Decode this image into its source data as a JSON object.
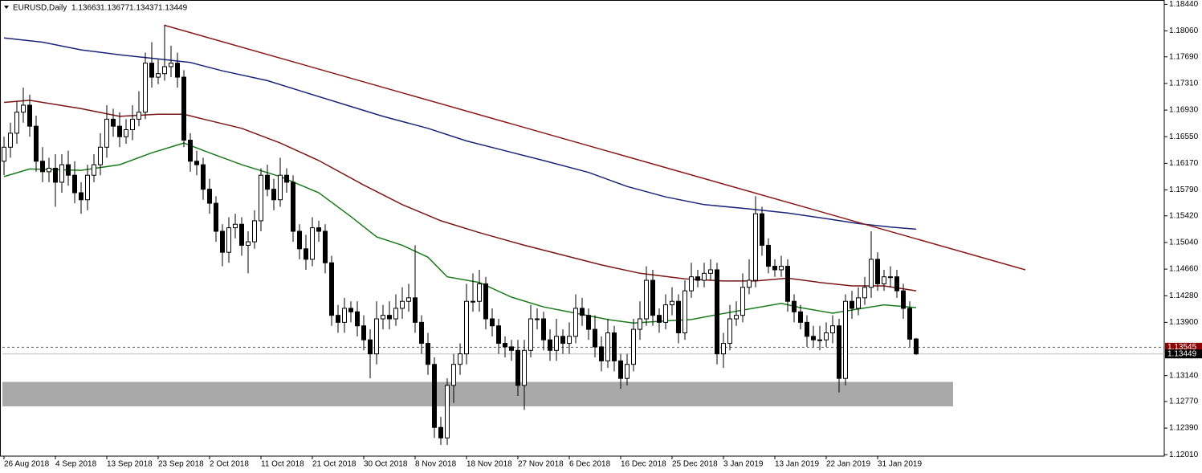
{
  "chart_data": {
    "type": "candlestick",
    "symbol": "EURUSD,Daily",
    "xlim": [
      -0.25,
      180.625
    ],
    "ylim": [
      1.1199,
      1.1849
    ],
    "xticks": [
      {
        "value": 0,
        "label": "26 Aug 2018"
      },
      {
        "value": 8,
        "label": "4 Sep 2018"
      },
      {
        "value": 16,
        "label": "13 Sep 2018"
      },
      {
        "value": 24,
        "label": "23 Sep 2018"
      },
      {
        "value": 32,
        "label": "2 Oct 2018"
      },
      {
        "value": 40,
        "label": "11 Oct 2018"
      },
      {
        "value": 48,
        "label": "21 Oct 2018"
      },
      {
        "value": 56,
        "label": "30 Oct 2018"
      },
      {
        "value": 64,
        "label": "8 Nov 2018"
      },
      {
        "value": 72,
        "label": "18 Nov 2018"
      },
      {
        "value": 80,
        "label": "27 Nov 2018"
      },
      {
        "value": 88,
        "label": "6 Dec 2018"
      },
      {
        "value": 96,
        "label": "16 Dec 2018"
      },
      {
        "value": 104,
        "label": "25 Dec 2018"
      },
      {
        "value": 112,
        "label": "3 Jan 2019"
      },
      {
        "value": 120,
        "label": "13 Jan 2019"
      },
      {
        "value": 128,
        "label": "22 Jan 2019"
      },
      {
        "value": 136,
        "label": "31 Jan 2019"
      }
    ],
    "yticks": [
      {
        "value": 1.1844,
        "label": "1.18440"
      },
      {
        "value": 1.1806,
        "label": "1.18060"
      },
      {
        "value": 1.1769,
        "label": "1.17690"
      },
      {
        "value": 1.1731,
        "label": "1.17310"
      },
      {
        "value": 1.1693,
        "label": "1.16930"
      },
      {
        "value": 1.1655,
        "label": "1.16550"
      },
      {
        "value": 1.1617,
        "label": "1.16170"
      },
      {
        "value": 1.1579,
        "label": "1.15790"
      },
      {
        "value": 1.1542,
        "label": "1.15420"
      },
      {
        "value": 1.1504,
        "label": "1.15040"
      },
      {
        "value": 1.1466,
        "label": "1.14660"
      },
      {
        "value": 1.1428,
        "label": "1.14280"
      },
      {
        "value": 1.139,
        "label": "1.13900"
      },
      {
        "value": 1.1314,
        "label": "1.13140"
      },
      {
        "value": 1.1277,
        "label": "1.12770"
      },
      {
        "value": 1.1239,
        "label": "1.12390"
      },
      {
        "value": 1.1201,
        "label": "1.12010"
      }
    ],
    "up_color": "#ffffff",
    "down_color": "#000000",
    "open": [
      1.162,
      1.164,
      1.166,
      1.169,
      1.17,
      1.167,
      1.162,
      1.1605,
      1.161,
      1.159,
      1.1615,
      1.16,
      1.1575,
      1.1565,
      1.16,
      1.1615,
      1.164,
      1.168,
      1.167,
      1.1655,
      1.1665,
      1.168,
      1.169,
      1.176,
      1.174,
      1.1745,
      1.1755,
      1.176,
      1.174,
      1.165,
      1.162,
      1.1615,
      1.158,
      1.156,
      1.152,
      1.149,
      1.1525,
      1.153,
      1.15,
      1.1505,
      1.1535,
      1.16,
      1.158,
      1.1565,
      1.16,
      1.159,
      1.152,
      1.1495,
      1.148,
      1.1525,
      1.152,
      1.1475,
      1.14,
      1.139,
      1.141,
      1.1405,
      1.1385,
      1.1365,
      1.1345,
      1.1395,
      1.14,
      1.1395,
      1.141,
      1.142,
      1.1425,
      1.139,
      1.136,
      1.133,
      1.124,
      1.1225,
      1.13,
      1.133,
      1.1345,
      1.142,
      1.142,
      1.1445,
      1.1395,
      1.1385,
      1.136,
      1.1355,
      1.135,
      1.13,
      1.135,
      1.1395,
      1.1395,
      1.1365,
      1.135,
      1.137,
      1.136,
      1.137,
      1.141,
      1.14,
      1.138,
      1.1355,
      1.1335,
      1.1375,
      1.1335,
      1.131,
      1.133,
      1.138,
      1.1395,
      1.145,
      1.14,
      1.139,
      1.1415,
      1.142,
      1.1375,
      1.1435,
      1.1455,
      1.145,
      1.146,
      1.1465,
      1.1345,
      1.136,
      1.1395,
      1.14,
      1.144,
      1.145,
      1.1545,
      1.15,
      1.147,
      1.1465,
      1.147,
      1.142,
      1.1405,
      1.139,
      1.137,
      1.1365,
      1.1365,
      1.1375,
      1.1385,
      1.131,
      1.142,
      1.141,
      1.1425,
      1.144,
      1.148,
      1.1445,
      1.1455,
      1.1455,
      1.1435,
      1.141,
      1.13663
    ],
    "high": [
      1.1655,
      1.1675,
      1.1705,
      1.1725,
      1.1715,
      1.1685,
      1.164,
      1.1625,
      1.163,
      1.163,
      1.1635,
      1.162,
      1.159,
      1.1615,
      1.163,
      1.166,
      1.17,
      1.1695,
      1.169,
      1.168,
      1.17,
      1.172,
      1.1775,
      1.179,
      1.1765,
      1.1815,
      1.1785,
      1.1775,
      1.175,
      1.166,
      1.1635,
      1.1625,
      1.1595,
      1.157,
      1.153,
      1.154,
      1.1545,
      1.154,
      1.152,
      1.155,
      1.161,
      1.1615,
      1.1595,
      1.1625,
      1.161,
      1.16,
      1.153,
      1.1515,
      1.154,
      1.1535,
      1.153,
      1.1485,
      1.1415,
      1.1425,
      1.142,
      1.142,
      1.14,
      1.138,
      1.142,
      1.1415,
      1.142,
      1.143,
      1.144,
      1.1445,
      1.15,
      1.14,
      1.1375,
      1.134,
      1.1255,
      1.131,
      1.1345,
      1.136,
      1.1445,
      1.146,
      1.1465,
      1.1455,
      1.141,
      1.1395,
      1.137,
      1.1365,
      1.1365,
      1.1365,
      1.1415,
      1.141,
      1.1405,
      1.138,
      1.1395,
      1.138,
      1.139,
      1.143,
      1.1425,
      1.141,
      1.14,
      1.137,
      1.1395,
      1.1385,
      1.1345,
      1.1345,
      1.1395,
      1.142,
      1.147,
      1.1465,
      1.141,
      1.143,
      1.144,
      1.143,
      1.145,
      1.1475,
      1.1465,
      1.1475,
      1.148,
      1.1475,
      1.1375,
      1.1415,
      1.142,
      1.146,
      1.148,
      1.157,
      1.1555,
      1.151,
      1.148,
      1.1485,
      1.148,
      1.143,
      1.1415,
      1.14,
      1.1385,
      1.1385,
      1.139,
      1.14,
      1.1395,
      1.143,
      1.1435,
      1.144,
      1.1455,
      1.152,
      1.149,
      1.1465,
      1.147,
      1.1465,
      1.1445,
      1.142,
      1.13677
    ],
    "low": [
      1.16,
      1.1625,
      1.1645,
      1.1675,
      1.1655,
      1.1605,
      1.159,
      1.159,
      1.1555,
      1.1575,
      1.1585,
      1.156,
      1.1545,
      1.155,
      1.159,
      1.16,
      1.1625,
      1.1655,
      1.164,
      1.1645,
      1.165,
      1.167,
      1.168,
      1.1725,
      1.173,
      1.1735,
      1.174,
      1.1725,
      1.164,
      1.1605,
      1.16,
      1.1565,
      1.1545,
      1.1505,
      1.147,
      1.1475,
      1.151,
      1.1485,
      1.146,
      1.1495,
      1.152,
      1.157,
      1.155,
      1.1555,
      1.1575,
      1.1505,
      1.148,
      1.1465,
      1.147,
      1.1505,
      1.146,
      1.1385,
      1.1375,
      1.1375,
      1.139,
      1.137,
      1.135,
      1.131,
      1.133,
      1.138,
      1.138,
      1.1385,
      1.1395,
      1.1405,
      1.1375,
      1.1345,
      1.1315,
      1.1225,
      1.1215,
      1.1215,
      1.1275,
      1.1315,
      1.133,
      1.1405,
      1.1405,
      1.138,
      1.137,
      1.1345,
      1.134,
      1.1335,
      1.1285,
      1.1265,
      1.134,
      1.138,
      1.135,
      1.1335,
      1.1335,
      1.1345,
      1.1345,
      1.136,
      1.1385,
      1.1365,
      1.134,
      1.132,
      1.1325,
      1.132,
      1.1295,
      1.13,
      1.132,
      1.1365,
      1.1385,
      1.1385,
      1.1375,
      1.138,
      1.14,
      1.136,
      1.1365,
      1.1425,
      1.144,
      1.144,
      1.145,
      1.133,
      1.1325,
      1.135,
      1.1385,
      1.139,
      1.143,
      1.144,
      1.1485,
      1.146,
      1.1455,
      1.1455,
      1.1405,
      1.139,
      1.138,
      1.1355,
      1.1355,
      1.135,
      1.1355,
      1.136,
      1.129,
      1.13,
      1.1395,
      1.14,
      1.1415,
      1.1425,
      1.1435,
      1.1435,
      1.144,
      1.1425,
      1.1395,
      1.1355,
      1.13437
    ],
    "close": [
      1.164,
      1.166,
      1.169,
      1.17,
      1.167,
      1.162,
      1.1605,
      1.161,
      1.159,
      1.1615,
      1.16,
      1.1575,
      1.1565,
      1.16,
      1.1615,
      1.164,
      1.168,
      1.167,
      1.1655,
      1.1665,
      1.168,
      1.169,
      1.176,
      1.174,
      1.1745,
      1.1755,
      1.176,
      1.174,
      1.165,
      1.162,
      1.1615,
      1.158,
      1.156,
      1.152,
      1.149,
      1.1525,
      1.153,
      1.15,
      1.1505,
      1.1535,
      1.16,
      1.158,
      1.1565,
      1.16,
      1.159,
      1.152,
      1.1495,
      1.148,
      1.1525,
      1.152,
      1.1475,
      1.14,
      1.139,
      1.141,
      1.1405,
      1.1385,
      1.1365,
      1.1345,
      1.1395,
      1.14,
      1.1395,
      1.141,
      1.142,
      1.1425,
      1.139,
      1.136,
      1.133,
      1.124,
      1.1225,
      1.13,
      1.133,
      1.1345,
      1.142,
      1.142,
      1.1445,
      1.1395,
      1.1385,
      1.136,
      1.1355,
      1.135,
      1.13,
      1.135,
      1.1395,
      1.1395,
      1.1365,
      1.135,
      1.137,
      1.136,
      1.137,
      1.141,
      1.14,
      1.138,
      1.1355,
      1.1335,
      1.1375,
      1.1335,
      1.131,
      1.133,
      1.138,
      1.1395,
      1.145,
      1.14,
      1.139,
      1.1415,
      1.142,
      1.1375,
      1.1435,
      1.1455,
      1.145,
      1.146,
      1.1465,
      1.1345,
      1.136,
      1.1395,
      1.14,
      1.144,
      1.145,
      1.1545,
      1.15,
      1.147,
      1.1465,
      1.147,
      1.142,
      1.1405,
      1.139,
      1.137,
      1.1365,
      1.1365,
      1.1375,
      1.1385,
      1.131,
      1.142,
      1.141,
      1.1425,
      1.144,
      1.148,
      1.1445,
      1.1455,
      1.1455,
      1.1435,
      1.141,
      1.1366,
      1.13449
    ],
    "lines": [
      {
        "color": "#1b7a1b",
        "x": [
          0,
          4,
          12,
          18,
          23,
          28,
          32,
          37,
          43,
          49,
          54,
          58,
          62,
          66,
          69,
          74,
          79,
          84,
          89,
          94,
          98,
          103,
          107,
          111,
          116,
          121,
          124,
          129,
          133,
          137,
          142
        ],
        "values": [
          1.1598,
          1.1609,
          1.1607,
          1.1615,
          1.1632,
          1.1646,
          1.1632,
          1.1615,
          1.1598,
          1.1575,
          1.1541,
          1.1512,
          1.15,
          1.1483,
          1.1455,
          1.1447,
          1.1426,
          1.1412,
          1.1403,
          1.1394,
          1.1389,
          1.1392,
          1.1394,
          1.1401,
          1.1409,
          1.1417,
          1.1411,
          1.1403,
          1.1409,
          1.1415,
          1.1411
        ]
      },
      {
        "color": "#7a1616",
        "x": [
          0,
          4,
          12,
          18,
          24,
          28,
          32,
          37,
          43,
          49,
          56,
          62,
          68,
          74,
          81,
          87,
          93,
          99,
          106,
          112,
          117,
          122,
          127,
          132,
          137,
          142
        ],
        "values": [
          1.1704,
          1.1707,
          1.1695,
          1.1684,
          1.1687,
          1.1687,
          1.1678,
          1.1667,
          1.1646,
          1.1621,
          1.1586,
          1.1558,
          1.1535,
          1.1518,
          1.15,
          1.1486,
          1.1472,
          1.146,
          1.1452,
          1.1449,
          1.1449,
          1.1453,
          1.1447,
          1.1442,
          1.1442,
          1.1435
        ]
      },
      {
        "color": "#1a2478",
        "x": [
          0,
          6,
          12,
          18,
          24,
          29,
          34,
          41,
          47,
          53,
          59,
          66,
          72,
          78,
          84,
          91,
          97,
          103,
          109,
          116,
          122,
          128,
          133,
          138,
          142
        ],
        "values": [
          1.1796,
          1.179,
          1.1779,
          1.1772,
          1.1766,
          1.1761,
          1.1749,
          1.1735,
          1.1718,
          1.1701,
          1.1684,
          1.1667,
          1.1649,
          1.1635,
          1.1621,
          1.1604,
          1.1584,
          1.1569,
          1.1558,
          1.1552,
          1.1546,
          1.1538,
          1.1531,
          1.1526,
          1.1523
        ]
      }
    ],
    "trendline": {
      "color": "#8b1a1a",
      "x": [
        25,
        159
      ],
      "values": [
        1.1814,
        1.1465
      ]
    },
    "zone": {
      "color": "#a9a9a9",
      "x": [
        -0.25,
        147.75
      ],
      "values": [
        1.127,
        1.1305
      ]
    },
    "ask_line": 1.13545,
    "ask_color": "#8b0000"
  }
}
